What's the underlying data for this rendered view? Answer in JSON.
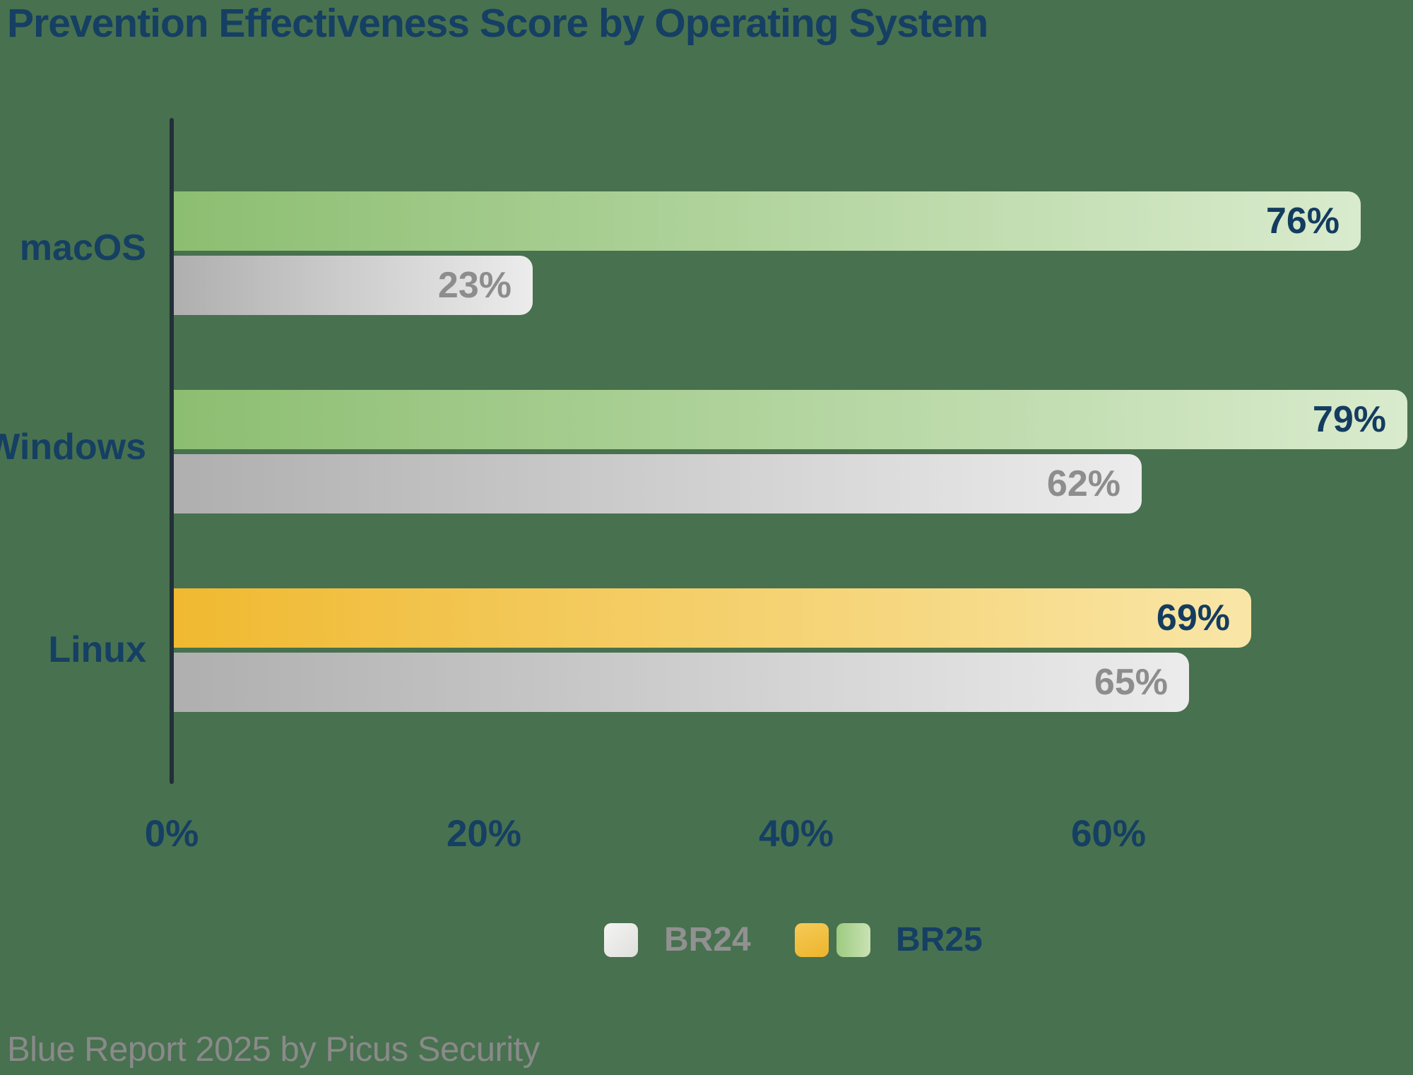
{
  "title": "Prevention Effectiveness Score by Operating System",
  "footer": "Blue Report 2025 by Picus Security",
  "colors": {
    "background": "#48714F",
    "navy_text": "#153F63",
    "axis_line": "#232F3A",
    "bar_green_start": "#8CBE71",
    "bar_green_end": "#D9EBCD",
    "bar_yellow_start": "#F0B930",
    "bar_yellow_end": "#F9E6A7",
    "bar_gray_start": "#AFAFAF",
    "bar_gray_end": "#ECECEC",
    "gray_value_text": "#8D8D8D",
    "legend_br24_text": "#919191",
    "footer_text": "#8A8A8A"
  },
  "chart_data": {
    "type": "bar",
    "orientation": "horizontal",
    "title": "Prevention Effectiveness Score by Operating System",
    "categories": [
      "macOS",
      "Windows",
      "Linux"
    ],
    "series": [
      {
        "name": "BR25",
        "values": [
          76,
          79,
          69
        ]
      },
      {
        "name": "BR24",
        "values": [
          23,
          62,
          65
        ]
      }
    ],
    "labels": [
      [
        "76%",
        "79%",
        "69%"
      ],
      [
        "23%",
        "62%",
        "65%"
      ]
    ],
    "x_ticks": [
      "0%",
      "20%",
      "40%",
      "60%"
    ],
    "xlim": [
      0,
      80
    ],
    "grid": false,
    "legend_position": "bottom",
    "legend": [
      {
        "label": "BR24"
      },
      {
        "label": "BR25"
      }
    ]
  }
}
